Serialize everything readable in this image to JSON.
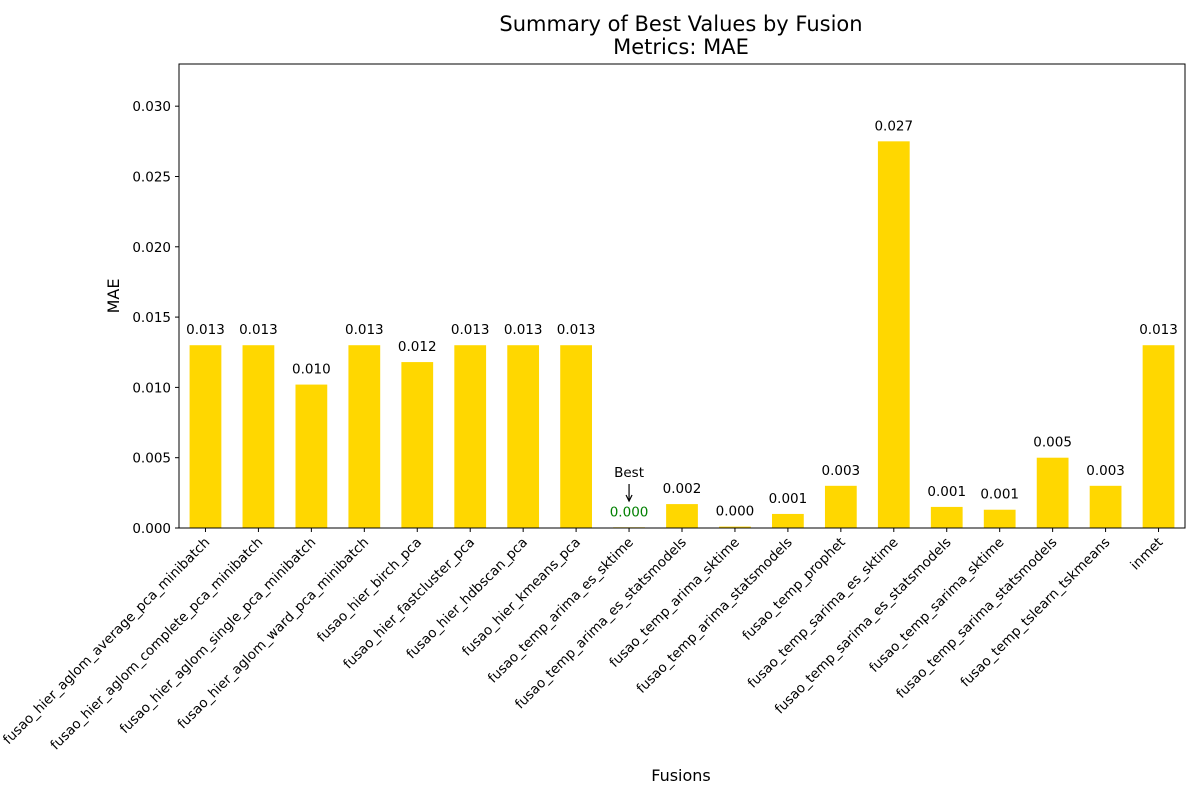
{
  "chart_data": {
    "type": "bar",
    "title": "Summary of Best Values by Fusion",
    "subtitle": "Metrics: MAE",
    "xlabel": "Fusions",
    "ylabel": "MAE",
    "ylim": [
      0,
      0.033
    ],
    "yticks": [
      0.0,
      0.005,
      0.01,
      0.015,
      0.02,
      0.025,
      0.03
    ],
    "ytick_labels": [
      "0.000",
      "0.005",
      "0.010",
      "0.015",
      "0.020",
      "0.025",
      "0.030"
    ],
    "categories": [
      "fusao_hier_aglom_average_pca_minibatch",
      "fusao_hier_aglom_complete_pca_minibatch",
      "fusao_hier_aglom_single_pca_minibatch",
      "fusao_hier_aglom_ward_pca_minibatch",
      "fusao_hier_birch_pca",
      "fusao_hier_fastcluster_pca",
      "fusao_hier_hdbscan_pca",
      "fusao_hier_kmeans_pca",
      "fusao_temp_arima_es_sktime",
      "fusao_temp_arima_es_statsmodels",
      "fusao_temp_arima_sktime",
      "fusao_temp_arima_statsmodels",
      "fusao_temp_prophet",
      "fusao_temp_sarima_es_sktime",
      "fusao_temp_sarima_es_statsmodels",
      "fusao_temp_sarima_sktime",
      "fusao_temp_sarima_statsmodels",
      "fusao_temp_tslearn_tskmeans",
      "inmet"
    ],
    "values": [
      0.013,
      0.013,
      0.0102,
      0.013,
      0.0118,
      0.013,
      0.013,
      0.013,
      5e-05,
      0.0017,
      0.0001,
      0.001,
      0.003,
      0.0275,
      0.0015,
      0.0013,
      0.005,
      0.003,
      0.013
    ],
    "value_labels": [
      "0.013",
      "0.013",
      "0.010",
      "0.013",
      "0.012",
      "0.013",
      "0.013",
      "0.013",
      "0.000",
      "0.002",
      "0.000",
      "0.001",
      "0.003",
      "0.027",
      "0.001",
      "0.001",
      "0.005",
      "0.003",
      "0.013"
    ],
    "best_index": 8,
    "best_annotation": "Best",
    "colors": {
      "bar": "#FFD700",
      "best_label": "#008000",
      "text": "#000000",
      "axis": "#000000"
    },
    "grid": false,
    "legend": "none"
  }
}
